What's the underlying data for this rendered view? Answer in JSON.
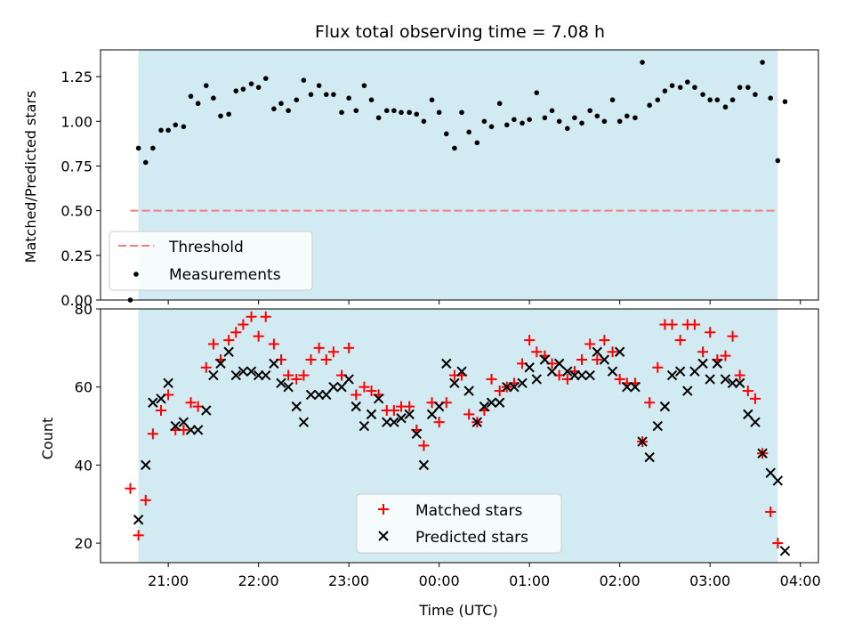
{
  "chart_data": [
    {
      "type": "scatter",
      "title": "Flux total observing time = 7.08 h",
      "xlabel": "",
      "ylabel": "Matched/Predicted stars",
      "ylim": [
        0,
        1.4
      ],
      "yticks": [
        "0.00",
        "0.25",
        "0.50",
        "0.75",
        "1.00",
        "1.25"
      ],
      "xlim_hours": [
        20.25,
        28.2
      ],
      "shaded_range_hours": [
        20.67,
        27.75
      ],
      "shade_color": "#add8e6",
      "threshold": {
        "label": "Threshold",
        "value": 0.5,
        "color": "#f08080",
        "x_hours": [
          20.58,
          27.75
        ]
      },
      "legend": [
        "Threshold",
        "Measurements"
      ],
      "legend_position": "lower left",
      "grid": false,
      "series": [
        {
          "name": "Measurements",
          "color": "#000000",
          "points": [
            [
              20.58,
              0.0
            ],
            [
              20.67,
              0.85
            ],
            [
              20.75,
              0.77
            ],
            [
              20.83,
              0.85
            ],
            [
              20.92,
              0.95
            ],
            [
              21.0,
              0.95
            ],
            [
              21.08,
              0.98
            ],
            [
              21.17,
              0.97
            ],
            [
              21.25,
              1.14
            ],
            [
              21.33,
              1.1
            ],
            [
              21.42,
              1.2
            ],
            [
              21.5,
              1.13
            ],
            [
              21.58,
              1.03
            ],
            [
              21.67,
              1.04
            ],
            [
              21.75,
              1.17
            ],
            [
              21.83,
              1.18
            ],
            [
              21.92,
              1.21
            ],
            [
              22.0,
              1.19
            ],
            [
              22.08,
              1.24
            ],
            [
              22.17,
              1.07
            ],
            [
              22.25,
              1.1
            ],
            [
              22.33,
              1.06
            ],
            [
              22.42,
              1.12
            ],
            [
              22.5,
              1.23
            ],
            [
              22.58,
              1.15
            ],
            [
              22.67,
              1.2
            ],
            [
              22.75,
              1.15
            ],
            [
              22.83,
              1.15
            ],
            [
              22.92,
              1.05
            ],
            [
              23.0,
              1.13
            ],
            [
              23.08,
              1.06
            ],
            [
              23.17,
              1.2
            ],
            [
              23.25,
              1.12
            ],
            [
              23.33,
              1.02
            ],
            [
              23.42,
              1.06
            ],
            [
              23.5,
              1.06
            ],
            [
              23.58,
              1.05
            ],
            [
              23.67,
              1.05
            ],
            [
              23.75,
              1.04
            ],
            [
              23.83,
              1.0
            ],
            [
              23.92,
              1.12
            ],
            [
              24.0,
              1.05
            ],
            [
              24.08,
              0.93
            ],
            [
              24.17,
              0.85
            ],
            [
              24.25,
              1.05
            ],
            [
              24.33,
              0.94
            ],
            [
              24.42,
              0.88
            ],
            [
              24.5,
              1.0
            ],
            [
              24.58,
              0.97
            ],
            [
              24.67,
              1.1
            ],
            [
              24.75,
              0.98
            ],
            [
              24.83,
              1.01
            ],
            [
              24.92,
              0.99
            ],
            [
              25.0,
              1.01
            ],
            [
              25.08,
              1.16
            ],
            [
              25.17,
              1.02
            ],
            [
              25.25,
              1.06
            ],
            [
              25.33,
              1.0
            ],
            [
              25.42,
              0.96
            ],
            [
              25.5,
              1.02
            ],
            [
              25.58,
              0.99
            ],
            [
              25.67,
              1.06
            ],
            [
              25.75,
              1.03
            ],
            [
              25.83,
              1.0
            ],
            [
              25.92,
              1.12
            ],
            [
              26.0,
              1.0
            ],
            [
              26.08,
              1.03
            ],
            [
              26.17,
              1.02
            ],
            [
              26.25,
              1.33
            ],
            [
              26.33,
              1.09
            ],
            [
              26.42,
              1.12
            ],
            [
              26.5,
              1.17
            ],
            [
              26.58,
              1.2
            ],
            [
              26.67,
              1.19
            ],
            [
              26.75,
              1.22
            ],
            [
              26.83,
              1.19
            ],
            [
              26.92,
              1.15
            ],
            [
              27.0,
              1.12
            ],
            [
              27.08,
              1.12
            ],
            [
              27.17,
              1.08
            ],
            [
              27.25,
              1.12
            ],
            [
              27.33,
              1.19
            ],
            [
              27.42,
              1.19
            ],
            [
              27.5,
              1.15
            ],
            [
              27.58,
              1.33
            ],
            [
              27.67,
              1.13
            ],
            [
              27.75,
              0.78
            ],
            [
              27.83,
              1.11
            ]
          ]
        }
      ]
    },
    {
      "type": "scatter",
      "xlabel": "Time (UTC)",
      "ylabel": "Count",
      "ylim": [
        15,
        80
      ],
      "yticks": [
        "20",
        "40",
        "60",
        "80"
      ],
      "xticks": [
        "21:00",
        "22:00",
        "23:00",
        "00:00",
        "01:00",
        "02:00",
        "03:00",
        "04:00"
      ],
      "xtick_hours": [
        21,
        22,
        23,
        24,
        25,
        26,
        27,
        28
      ],
      "xlim_hours": [
        20.25,
        28.2
      ],
      "shaded_range_hours": [
        20.67,
        27.75
      ],
      "shade_color": "#add8e6",
      "legend": [
        "Matched stars",
        "Predicted stars"
      ],
      "legend_position": "lower center",
      "grid": false,
      "series": [
        {
          "name": "Matched stars",
          "marker": "+",
          "color": "#ff0000",
          "points": [
            [
              20.58,
              34
            ],
            [
              20.67,
              22
            ],
            [
              20.75,
              31
            ],
            [
              20.83,
              48
            ],
            [
              20.92,
              54
            ],
            [
              21.0,
              58
            ],
            [
              21.08,
              49
            ],
            [
              21.17,
              49
            ],
            [
              21.25,
              56
            ],
            [
              21.33,
              55
            ],
            [
              21.42,
              65
            ],
            [
              21.5,
              71
            ],
            [
              21.58,
              67
            ],
            [
              21.67,
              72
            ],
            [
              21.75,
              74
            ],
            [
              21.83,
              76
            ],
            [
              21.92,
              78
            ],
            [
              22.0,
              73
            ],
            [
              22.08,
              78
            ],
            [
              22.17,
              71
            ],
            [
              22.25,
              67
            ],
            [
              22.33,
              63
            ],
            [
              22.42,
              62
            ],
            [
              22.5,
              63
            ],
            [
              22.58,
              67
            ],
            [
              22.67,
              70
            ],
            [
              22.75,
              67
            ],
            [
              22.83,
              69
            ],
            [
              22.92,
              63
            ],
            [
              23.0,
              70
            ],
            [
              23.08,
              58
            ],
            [
              23.17,
              60
            ],
            [
              23.25,
              59
            ],
            [
              23.33,
              58
            ],
            [
              23.42,
              54
            ],
            [
              23.5,
              54
            ],
            [
              23.58,
              55
            ],
            [
              23.67,
              55
            ],
            [
              23.75,
              49
            ],
            [
              23.83,
              45
            ],
            [
              23.92,
              56
            ],
            [
              24.0,
              51
            ],
            [
              24.08,
              56
            ],
            [
              24.17,
              63
            ],
            [
              24.25,
              63
            ],
            [
              24.33,
              53
            ],
            [
              24.42,
              51
            ],
            [
              24.5,
              54
            ],
            [
              24.58,
              62
            ],
            [
              24.67,
              59
            ],
            [
              24.75,
              60
            ],
            [
              24.83,
              61
            ],
            [
              24.92,
              66
            ],
            [
              25.0,
              72
            ],
            [
              25.08,
              69
            ],
            [
              25.17,
              68
            ],
            [
              25.25,
              66
            ],
            [
              25.33,
              63
            ],
            [
              25.42,
              62
            ],
            [
              25.5,
              64
            ],
            [
              25.58,
              67
            ],
            [
              25.67,
              71
            ],
            [
              25.75,
              67
            ],
            [
              25.83,
              72
            ],
            [
              25.92,
              69
            ],
            [
              26.0,
              62
            ],
            [
              26.08,
              61
            ],
            [
              26.17,
              61
            ],
            [
              26.25,
              46
            ],
            [
              26.33,
              56
            ],
            [
              26.42,
              65
            ],
            [
              26.5,
              76
            ],
            [
              26.58,
              76
            ],
            [
              26.67,
              72
            ],
            [
              26.75,
              76
            ],
            [
              26.83,
              76
            ],
            [
              26.92,
              69
            ],
            [
              27.0,
              74
            ],
            [
              27.08,
              67
            ],
            [
              27.17,
              68
            ],
            [
              27.25,
              73
            ],
            [
              27.33,
              63
            ],
            [
              27.42,
              59
            ],
            [
              27.5,
              57
            ],
            [
              27.58,
              43
            ],
            [
              27.67,
              28
            ],
            [
              27.75,
              20
            ]
          ]
        },
        {
          "name": "Predicted stars",
          "marker": "x",
          "color": "#000000",
          "points": [
            [
              20.67,
              26
            ],
            [
              20.75,
              40
            ],
            [
              20.83,
              56
            ],
            [
              20.92,
              57
            ],
            [
              21.0,
              61
            ],
            [
              21.08,
              50
            ],
            [
              21.17,
              51
            ],
            [
              21.25,
              49
            ],
            [
              21.33,
              49
            ],
            [
              21.42,
              54
            ],
            [
              21.5,
              63
            ],
            [
              21.58,
              66
            ],
            [
              21.67,
              69
            ],
            [
              21.75,
              63
            ],
            [
              21.83,
              64
            ],
            [
              21.92,
              64
            ],
            [
              22.0,
              63
            ],
            [
              22.08,
              63
            ],
            [
              22.17,
              66
            ],
            [
              22.25,
              61
            ],
            [
              22.33,
              60
            ],
            [
              22.42,
              55
            ],
            [
              22.5,
              51
            ],
            [
              22.58,
              58
            ],
            [
              22.67,
              58
            ],
            [
              22.75,
              58
            ],
            [
              22.83,
              60
            ],
            [
              22.92,
              60
            ],
            [
              23.0,
              62
            ],
            [
              23.08,
              55
            ],
            [
              23.17,
              50
            ],
            [
              23.25,
              53
            ],
            [
              23.33,
              57
            ],
            [
              23.42,
              51
            ],
            [
              23.5,
              51
            ],
            [
              23.58,
              52
            ],
            [
              23.67,
              53
            ],
            [
              23.75,
              48
            ],
            [
              23.83,
              40
            ],
            [
              23.92,
              53
            ],
            [
              24.0,
              55
            ],
            [
              24.08,
              66
            ],
            [
              24.17,
              61
            ],
            [
              24.25,
              64
            ],
            [
              24.33,
              59
            ],
            [
              24.42,
              51
            ],
            [
              24.5,
              55
            ],
            [
              24.58,
              56
            ],
            [
              24.67,
              56
            ],
            [
              24.75,
              60
            ],
            [
              24.83,
              60
            ],
            [
              24.92,
              61
            ],
            [
              25.0,
              65
            ],
            [
              25.08,
              62
            ],
            [
              25.17,
              67
            ],
            [
              25.25,
              64
            ],
            [
              25.33,
              66
            ],
            [
              25.42,
              64
            ],
            [
              25.5,
              63
            ],
            [
              25.58,
              63
            ],
            [
              25.67,
              63
            ],
            [
              25.75,
              69
            ],
            [
              25.83,
              67
            ],
            [
              25.92,
              64
            ],
            [
              26.0,
              69
            ],
            [
              26.08,
              60
            ],
            [
              26.17,
              60
            ],
            [
              26.25,
              46
            ],
            [
              26.33,
              42
            ],
            [
              26.42,
              50
            ],
            [
              26.5,
              55
            ],
            [
              26.58,
              63
            ],
            [
              26.67,
              64
            ],
            [
              26.75,
              59
            ],
            [
              26.83,
              64
            ],
            [
              26.92,
              66
            ],
            [
              27.0,
              62
            ],
            [
              27.08,
              66
            ],
            [
              27.17,
              62
            ],
            [
              27.25,
              61
            ],
            [
              27.33,
              61
            ],
            [
              27.42,
              53
            ],
            [
              27.5,
              51
            ],
            [
              27.58,
              43
            ],
            [
              27.67,
              38
            ],
            [
              27.75,
              36
            ],
            [
              27.83,
              18
            ]
          ]
        }
      ]
    }
  ]
}
